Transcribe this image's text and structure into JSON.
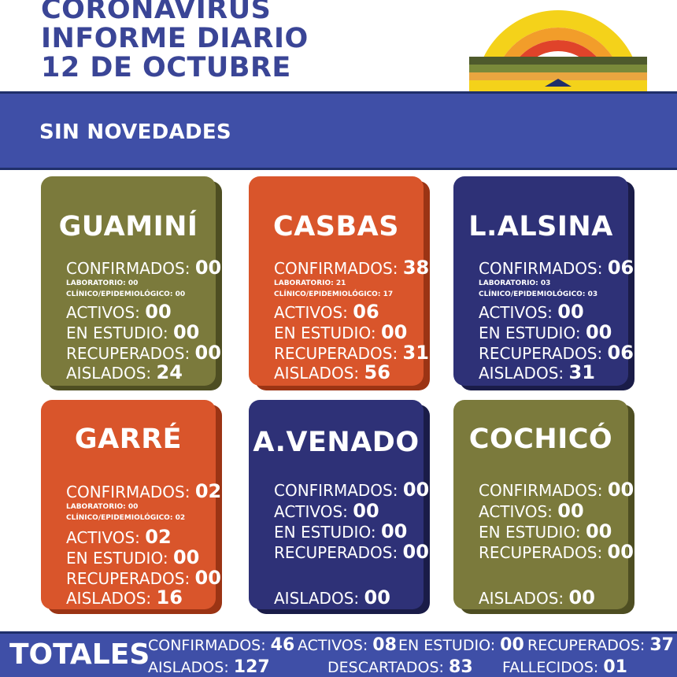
{
  "header": {
    "title_line1": "CORONAVIRUS",
    "title_line2": "INFORME DIARIO",
    "title_line3": "12 DE OCTUBRE"
  },
  "banner": {
    "text": "SIN NOVEDADES"
  },
  "colors": {
    "blue": "#3f4fa7",
    "title": "#3a4596",
    "olive": "#7b7a3c",
    "orange": "#d9552b",
    "navy": "#2e3177"
  },
  "labels": {
    "confirmados": "CONFIRMADOS:",
    "laboratorio": "LABORATORIO:",
    "clinico": "CLÍNICO/EPIDEMIOLÓGICO:",
    "activos": "ACTIVOS:",
    "en_estudio": "EN ESTUDIO:",
    "recuperados": "RECUPERADOS:",
    "aislados": "AISLADOS:"
  },
  "tiles": [
    {
      "name": "GUAMINÍ",
      "confirmados": "00",
      "laboratorio": "00",
      "clinico": "00",
      "activos": "00",
      "en_estudio": "00",
      "recuperados": "00",
      "aislados": "24"
    },
    {
      "name": "CASBAS",
      "confirmados": "38",
      "laboratorio": "21",
      "clinico": "17",
      "activos": "06",
      "en_estudio": "00",
      "recuperados": "31",
      "aislados": "56"
    },
    {
      "name": "L.ALSINA",
      "confirmados": "06",
      "laboratorio": "03",
      "clinico": "03",
      "activos": "00",
      "en_estudio": "00",
      "recuperados": "06",
      "aislados": "31"
    },
    {
      "name": "GARRÉ",
      "confirmados": "02",
      "laboratorio": "00",
      "clinico": "02",
      "activos": "02",
      "en_estudio": "00",
      "recuperados": "00",
      "aislados": "16"
    },
    {
      "name": "A.VENADO",
      "confirmados": "00",
      "activos": "00",
      "en_estudio": "00",
      "recuperados": "00",
      "aislados": "00"
    },
    {
      "name": "COCHICÓ",
      "confirmados": "00",
      "activos": "00",
      "en_estudio": "00",
      "recuperados": "00",
      "aislados": "00"
    }
  ],
  "totals": {
    "label": "TOTALES",
    "confirmados_label": "CONFIRMADOS:",
    "confirmados": "46",
    "activos_label": "ACTIVOS:",
    "activos": "08",
    "en_estudio_label": "EN ESTUDIO:",
    "en_estudio": "00",
    "recuperados_label": "RECUPERADOS:",
    "recuperados": "37",
    "aislados_label": "AISLADOS:",
    "aislados": "127",
    "descartados_label": "DESCARTADOS:",
    "descartados": "83",
    "fallecidos_label": "FALLECIDOS:",
    "fallecidos": "01"
  }
}
